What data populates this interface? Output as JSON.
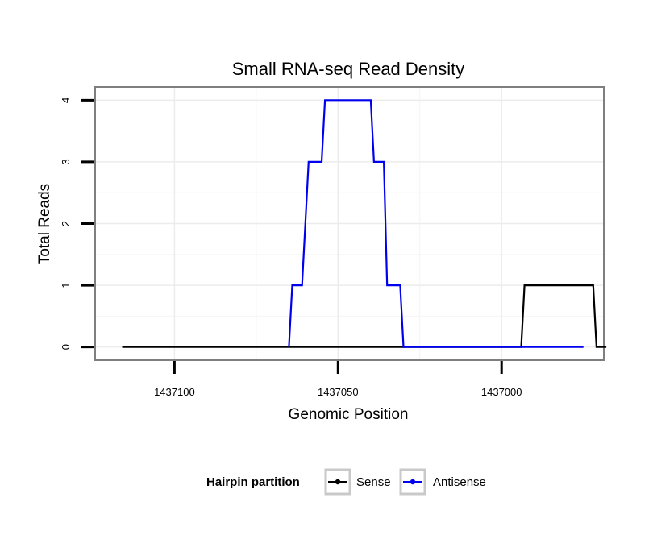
{
  "chart_data": {
    "type": "line",
    "title": "Small RNA-seq Read Density",
    "xlabel": "Genomic Position",
    "ylabel": "Total Reads",
    "x_reversed": true,
    "xlim": [
      1437124,
      1436969
    ],
    "ylim": [
      -0.2,
      4.2
    ],
    "xticks": [
      1437100,
      1437050,
      1437000
    ],
    "yticks": [
      0,
      1,
      2,
      3,
      4
    ],
    "grid": true,
    "legend_title": "Hairpin partition",
    "legend_position": "bottom",
    "series": [
      {
        "name": "Sense",
        "color": "#000000",
        "points": [
          [
            1437116,
            0
          ],
          [
            1436994,
            0
          ],
          [
            1436993,
            1
          ],
          [
            1436972,
            1
          ],
          [
            1436971,
            0
          ],
          [
            1436968,
            0
          ]
        ]
      },
      {
        "name": "Antisense",
        "color": "#0000ee",
        "points": [
          [
            1437065,
            0
          ],
          [
            1437064,
            1
          ],
          [
            1437061,
            1
          ],
          [
            1437059,
            3
          ],
          [
            1437055,
            3
          ],
          [
            1437054,
            4
          ],
          [
            1437040,
            4
          ],
          [
            1437039,
            3
          ],
          [
            1437036,
            3
          ],
          [
            1437035,
            1
          ],
          [
            1437031,
            1
          ],
          [
            1437030,
            0
          ],
          [
            1436975,
            0
          ]
        ]
      }
    ]
  }
}
